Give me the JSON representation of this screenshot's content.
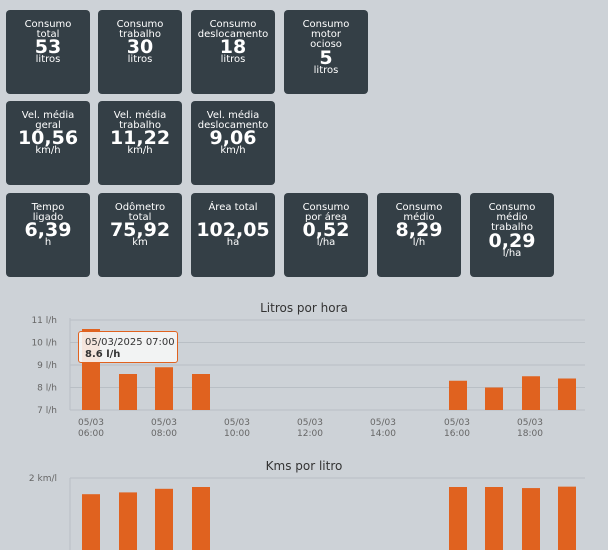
{
  "cards": [
    {
      "label": "Consumo\ntotal",
      "value": "53",
      "unit": "litros"
    },
    {
      "label": "Consumo\ntrabalho",
      "value": "30",
      "unit": "litros"
    },
    {
      "label": "Consumo\ndeslocamento",
      "value": "18",
      "unit": "litros"
    },
    {
      "label": "Consumo\nmotor\nocioso",
      "value": "5",
      "unit": "litros"
    },
    {
      "label": "Vel. média\ngeral",
      "value": "10,56",
      "unit": "km/h"
    },
    {
      "label": "Vel. média\ntrabalho",
      "value": "11,22",
      "unit": "km/h"
    },
    {
      "label": "Vel. média\ndeslocamento",
      "value": "9,06",
      "unit": "km/h"
    },
    {
      "label": "Tempo\nligado",
      "value": "6,39",
      "unit": "h"
    },
    {
      "label": "Odômetro\ntotal",
      "value": "75,92",
      "unit": "km"
    },
    {
      "label": "Área total",
      "value": "102,05",
      "unit": "ha"
    },
    {
      "label": "Consumo\npor área",
      "value": "0,52",
      "unit": "l/ha"
    },
    {
      "label": "Consumo\nmédio",
      "value": "8,29",
      "unit": "l/h"
    },
    {
      "label": "Consumo\nmédio\ntrabalho",
      "value": "0,29",
      "unit": "l/ha"
    }
  ],
  "colors": {
    "bar": "#e0621f",
    "card": "#343f46",
    "background": "#cdd2d7"
  },
  "tooltip": {
    "date": "05/03/2025 07:00",
    "value": "8.6 l/h"
  },
  "chart_data": [
    {
      "type": "bar",
      "title": "Litros por hora",
      "yticks": [
        "7 l/h",
        "8 l/h",
        "9 l/h",
        "10 l/h",
        "11 l/h"
      ],
      "ylim": [
        7,
        11
      ],
      "xticks": [
        "05/03\n06:00",
        "05/03\n08:00",
        "05/03\n10:00",
        "05/03\n12:00",
        "05/03\n14:00",
        "05/03\n16:00",
        "05/03\n18:00"
      ],
      "x": [
        "06:00",
        "07:00",
        "08:00",
        "09:00",
        "16:00",
        "17:00",
        "18:00",
        "19:00"
      ],
      "values": [
        10.6,
        8.6,
        8.9,
        8.6,
        8.3,
        8.0,
        8.5,
        8.4
      ],
      "grid": true
    },
    {
      "type": "bar",
      "title": "Kms por litro",
      "yticks": [
        "2 km/l"
      ],
      "ylim": [
        0,
        2
      ],
      "x": [
        "06:00",
        "07:00",
        "08:00",
        "09:00",
        "16:00",
        "17:00",
        "18:00",
        "19:00"
      ],
      "values": [
        1.55,
        1.6,
        1.7,
        1.75,
        1.75,
        1.75,
        1.72,
        1.76
      ],
      "grid": true
    }
  ]
}
